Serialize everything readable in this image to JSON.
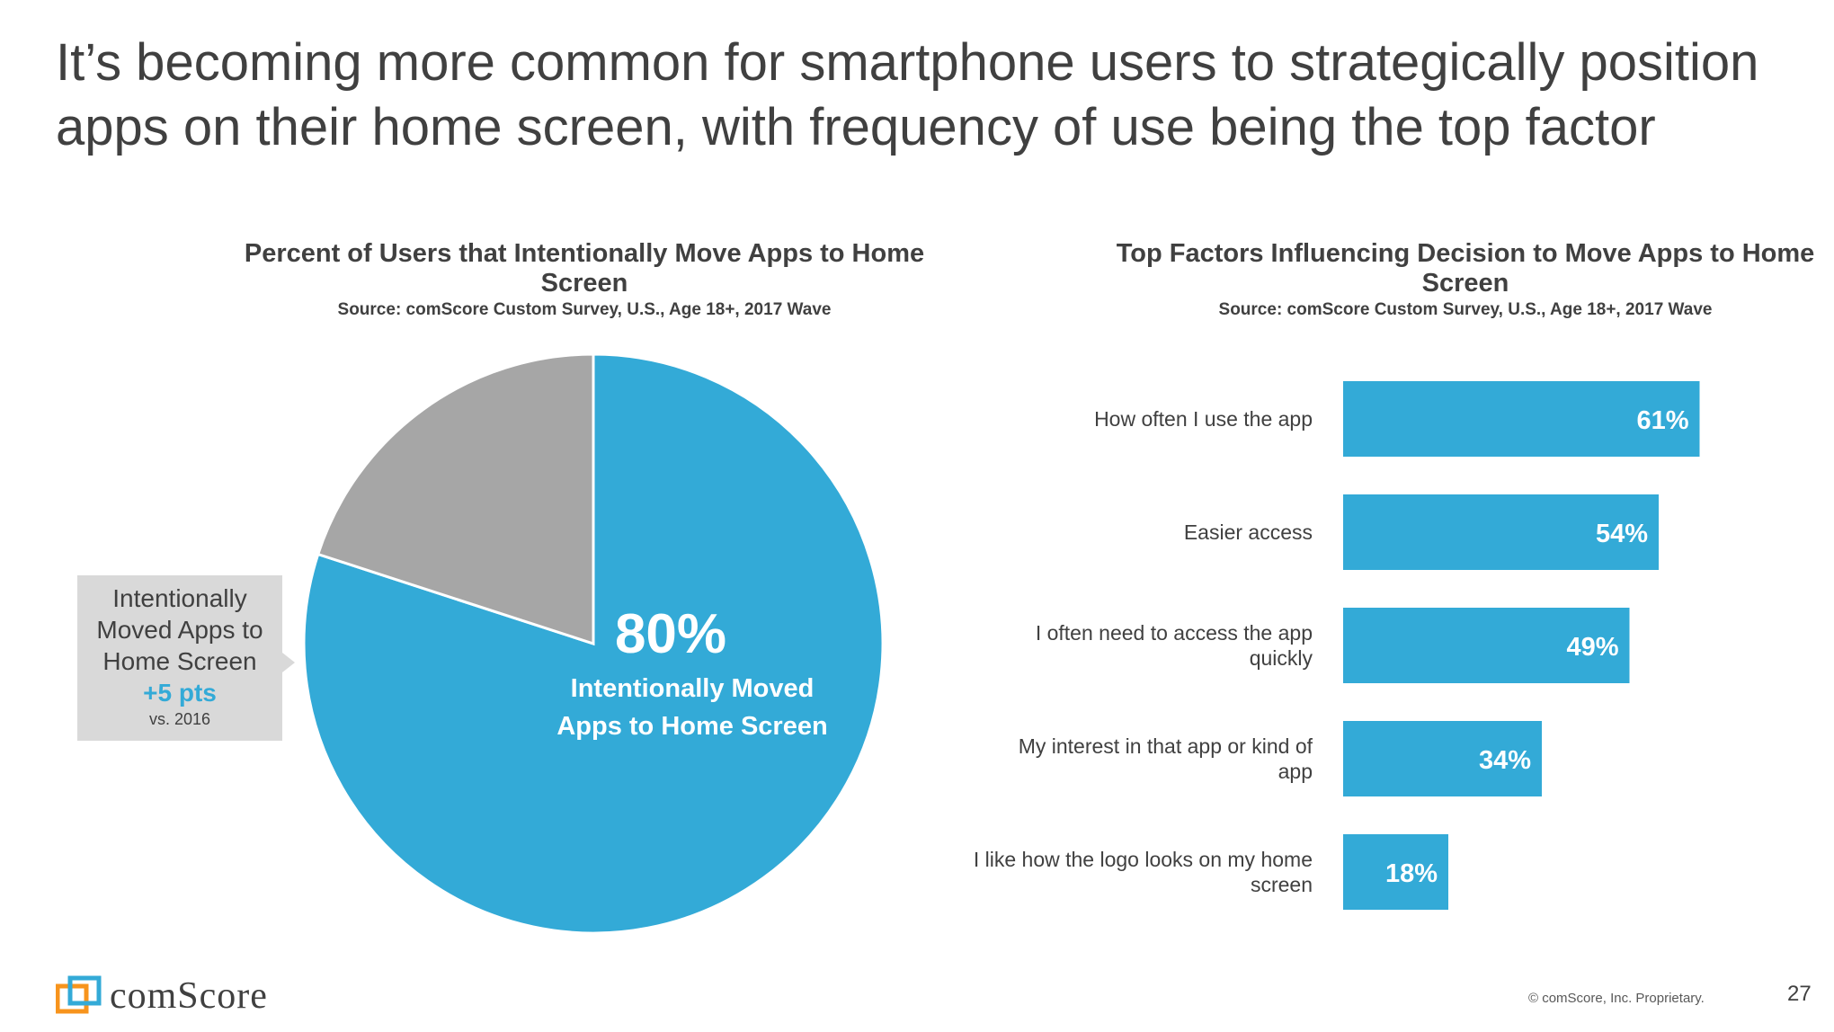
{
  "slide": {
    "title": "It’s becoming more common for smartphone users to strategically position apps on their home screen, with frequency of use being the top factor",
    "page_number": "27",
    "copyright": "© comScore, Inc. Proprietary.",
    "logo_text": "comScore"
  },
  "left_chart": {
    "title": "Percent of Users that Intentionally Move Apps to Home Screen",
    "source": "Source: comScore Custom Survey, U.S., Age 18+, 2017 Wave",
    "big_value": "80%",
    "big_label_line1": "Intentionally Moved",
    "big_label_line2": "Apps to Home Screen",
    "callout": {
      "line1": "Intentionally",
      "line2": "Moved Apps to",
      "line3": "Home Screen",
      "delta": "+5 pts",
      "compare": "vs. 2016"
    }
  },
  "right_chart": {
    "title": "Top Factors Influencing Decision to Move Apps to Home Screen",
    "source": "Source: comScore Custom Survey, U.S., Age 18+, 2017 Wave"
  },
  "colors": {
    "accent": "#33aad7",
    "secondary": "#a6a6a6",
    "callout_bg": "#d9d9d9",
    "text": "#404040"
  },
  "chart_data": [
    {
      "type": "pie",
      "title": "Percent of Users that Intentionally Move Apps to Home Screen",
      "slices": [
        {
          "label": "Intentionally Moved Apps to Home Screen",
          "value": 80,
          "color": "#33aad7"
        },
        {
          "label": "",
          "value": 20,
          "color": "#a6a6a6"
        }
      ]
    },
    {
      "type": "bar",
      "orientation": "horizontal",
      "title": "Top Factors Influencing Decision to Move Apps to Home Screen",
      "categories": [
        "How often I use the app",
        "Easier access",
        "I often need to access the app quickly",
        "My interest in that app or kind of app",
        "I like how the logo looks on my home screen"
      ],
      "values": [
        61,
        54,
        49,
        34,
        18
      ],
      "value_labels": [
        "61%",
        "54%",
        "49%",
        "34%",
        "18%"
      ],
      "color": "#33aad7",
      "xlim": [
        0,
        100
      ]
    }
  ]
}
